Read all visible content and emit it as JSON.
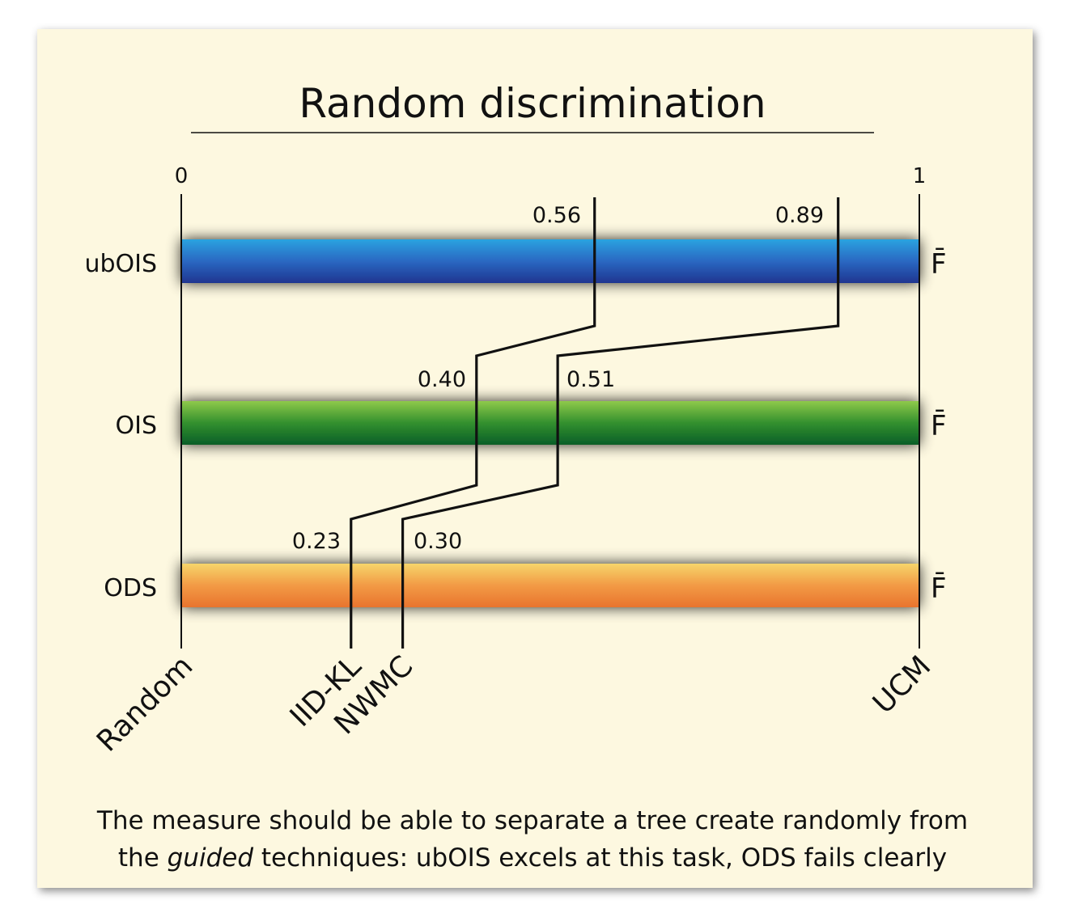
{
  "title": "Random discrimination",
  "scale": {
    "min_label": "0",
    "max_label": "1",
    "min": 0,
    "max": 1
  },
  "bars": [
    {
      "key": "ubois",
      "label": "ubOIS",
      "metric": "F̄",
      "colors": [
        "#2aa3e0",
        "#2a68c2",
        "#1f3590"
      ]
    },
    {
      "key": "ois",
      "label": "OIS",
      "metric": "F̄",
      "colors": [
        "#8fc94a",
        "#33902e",
        "#0a5e28"
      ]
    },
    {
      "key": "ods",
      "label": "ODS",
      "metric": "F̄",
      "colors": [
        "#f6d56a",
        "#f29a45",
        "#e8742e"
      ]
    }
  ],
  "methods": [
    {
      "label": "Random",
      "value": 0
    },
    {
      "label": "IID-KL",
      "values": {
        "ubOIS": 0.56,
        "OIS": 0.4,
        "ODS": 0.23
      },
      "value_labels": {
        "ubOIS": "0.56",
        "OIS": "0.40",
        "ODS": "0.23"
      }
    },
    {
      "label": "NWMC",
      "values": {
        "ubOIS": 0.89,
        "OIS": 0.51,
        "ODS": 0.3
      },
      "value_labels": {
        "ubOIS": "0.89",
        "OIS": "0.51",
        "ODS": "0.30"
      }
    },
    {
      "label": "UCM",
      "value": 1
    }
  ],
  "caption": {
    "line1": "The measure should be able to separate a tree create randomly from",
    "line2_a": "the ",
    "line2_em": "guided",
    "line2_b": " techniques: ubOIS excels at this task, ODS fails clearly"
  }
}
